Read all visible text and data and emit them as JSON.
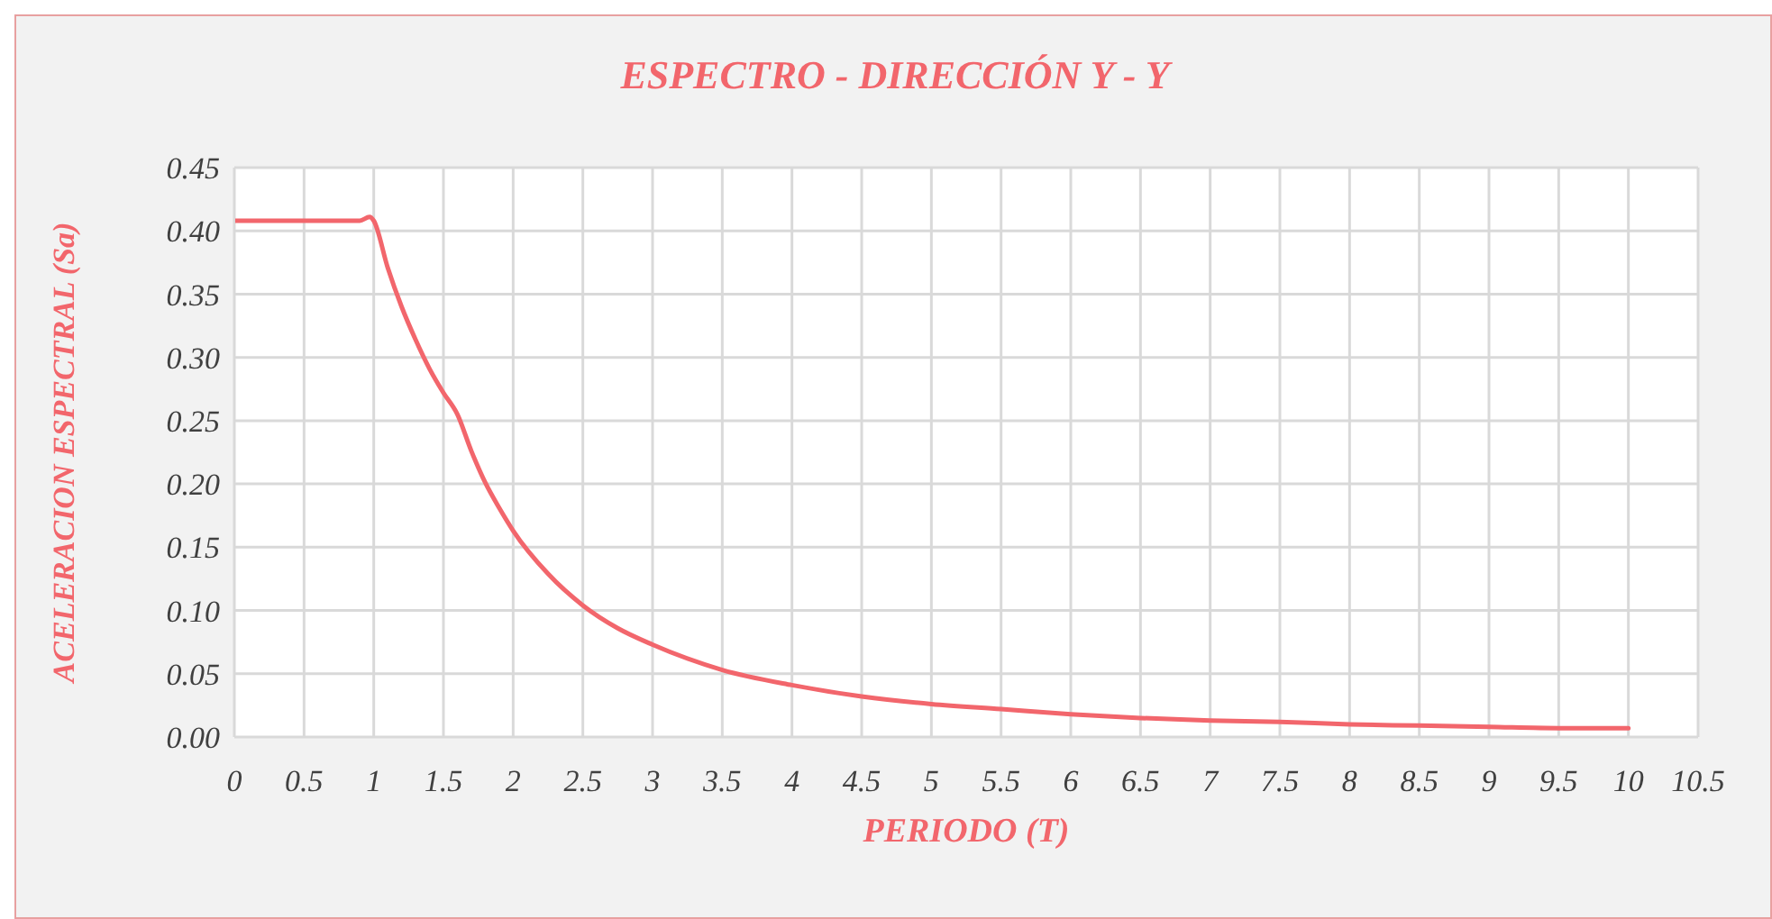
{
  "chart_data": {
    "type": "line",
    "title": "ESPECTRO - DIRECCIÓN Y - Y",
    "xlabel": "PERIODO (T)",
    "ylabel": "ACELERACION ESPECTRAL (Sa)",
    "series": [
      {
        "color": "#f2666c",
        "x": [
          0,
          0.5,
          0.9,
          0.97,
          1.0,
          1.1,
          1.2,
          1.3,
          1.4,
          1.5,
          1.6,
          1.7,
          1.8,
          1.9,
          2.0,
          2.25,
          2.5,
          2.75,
          3,
          3.5,
          4,
          4.5,
          5,
          5.5,
          6,
          6.5,
          7,
          7.5,
          8,
          8.5,
          9,
          9.5,
          10
        ],
        "values": [
          0.408,
          0.408,
          0.408,
          0.411,
          0.408,
          0.371,
          0.34,
          0.314,
          0.291,
          0.272,
          0.255,
          0.226,
          0.201,
          0.181,
          0.163,
          0.129,
          0.104,
          0.086,
          0.073,
          0.053,
          0.041,
          0.032,
          0.026,
          0.022,
          0.018,
          0.015,
          0.013,
          0.012,
          0.01,
          0.009,
          0.008,
          0.007,
          0.007
        ]
      }
    ],
    "xlim": [
      0,
      10.5
    ],
    "xticks": [
      0,
      0.5,
      1,
      1.5,
      2,
      2.5,
      3,
      3.5,
      4,
      4.5,
      5,
      5.5,
      6,
      6.5,
      7,
      7.5,
      8,
      8.5,
      9,
      9.5,
      10,
      10.5
    ],
    "ylim": [
      0,
      0.45
    ],
    "yticks": [
      {
        "value": 0,
        "label": "0.00"
      },
      {
        "value": 0.05,
        "label": "0.05"
      },
      {
        "value": 0.1,
        "label": "0.10"
      },
      {
        "value": 0.15,
        "label": "0.15"
      },
      {
        "value": 0.2,
        "label": "0.20"
      },
      {
        "value": 0.25,
        "label": "0.25"
      },
      {
        "value": 0.3,
        "label": "0.30"
      },
      {
        "value": 0.35,
        "label": "0.35"
      },
      {
        "value": 0.4,
        "label": "0.40"
      },
      {
        "value": 0.45,
        "label": "0.45"
      }
    ],
    "grid": true,
    "legend": false,
    "marker": "none",
    "line_style": "solid"
  }
}
